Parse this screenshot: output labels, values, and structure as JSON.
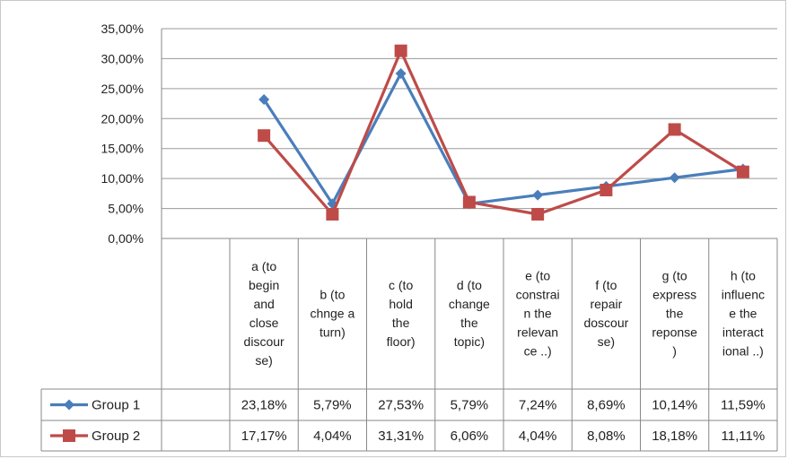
{
  "chart_data": {
    "type": "line",
    "categories": [
      [
        "a (to",
        "begin",
        "and",
        "close",
        "discour",
        "se)"
      ],
      [
        "b (to",
        "chnge a",
        "turn)"
      ],
      [
        "c (to",
        "hold",
        "the",
        "floor)"
      ],
      [
        "d (to",
        "change",
        "the",
        "topic)"
      ],
      [
        "e (to",
        "constrai",
        "n the",
        "relevan",
        "ce ..)"
      ],
      [
        "f (to",
        "repair",
        "doscour",
        "se)"
      ],
      [
        "g (to",
        "express",
        "the",
        "reponse",
        ")"
      ],
      [
        "h (to",
        "influenc",
        "e the",
        "interact",
        "ional ..)"
      ]
    ],
    "series": [
      {
        "name": "Group 1",
        "color": "#4a7ebb",
        "marker": "diamond",
        "values": [
          23.18,
          5.79,
          27.53,
          5.79,
          7.24,
          8.69,
          10.14,
          11.59
        ],
        "labels": [
          "23,18%",
          "5,79%",
          "27,53%",
          "5,79%",
          "7,24%",
          "8,69%",
          "10,14%",
          "11,59%"
        ]
      },
      {
        "name": "Group 2",
        "color": "#be4b48",
        "marker": "square",
        "values": [
          17.17,
          4.04,
          31.31,
          6.06,
          4.04,
          8.08,
          18.18,
          11.11
        ],
        "labels": [
          "17,17%",
          "4,04%",
          "31,31%",
          "6,06%",
          "4,04%",
          "8,08%",
          "18,18%",
          "11,11%"
        ]
      }
    ],
    "y_ticks": [
      "0,00%",
      "5,00%",
      "10,00%",
      "15,00%",
      "20,00%",
      "25,00%",
      "30,00%",
      "35,00%"
    ],
    "ylim": [
      0,
      35
    ],
    "grid": true,
    "legend": "data-table"
  }
}
